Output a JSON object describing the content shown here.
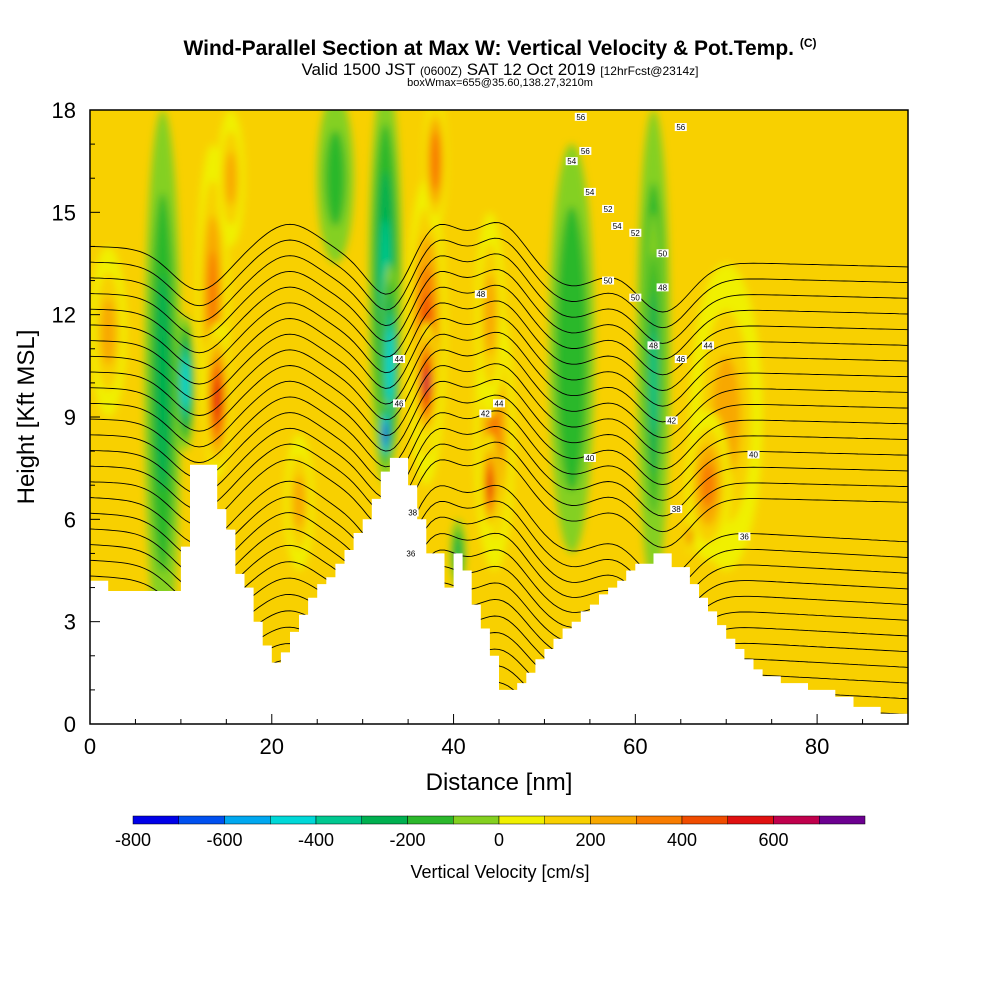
{
  "title": {
    "main": "Wind-Parallel Section at Max W: Vertical Velocity & Pot.Temp.",
    "copyright": "(C)",
    "valid_prefix": "Valid 1500 JST",
    "utc": "(0600Z)",
    "valid_date": "SAT 12 Oct 2019",
    "forecast": "[12hrFcst@2314z]",
    "box_info": "boxWmax=655@35.60,138.27,3210m"
  },
  "chart_data": {
    "type": "heatmap",
    "xlabel": "Distance [nm]",
    "ylabel": "Height [Kft MSL]",
    "xlim": [
      0,
      90
    ],
    "ylim": [
      0,
      18
    ],
    "x_ticks": [
      "0",
      "20",
      "40",
      "60",
      "80"
    ],
    "y_ticks": [
      "0",
      "3",
      "6",
      "9",
      "12",
      "15",
      "18"
    ],
    "colorbar": {
      "label": "Vertical Velocity [cm/s]",
      "tick_labels": [
        "-800",
        "-600",
        "-400",
        "-200",
        "0",
        "200",
        "400",
        "600"
      ],
      "levels": [
        -800,
        -700,
        -600,
        -500,
        -400,
        -300,
        -200,
        -100,
        0,
        100,
        200,
        300,
        400,
        500,
        600,
        700
      ],
      "colors": [
        "#0000e8",
        "#0050f0",
        "#00a8f0",
        "#00d8d8",
        "#00c890",
        "#00b050",
        "#2cb82c",
        "#84d020",
        "#f0f000",
        "#f8d000",
        "#f8a800",
        "#f87c00",
        "#f04c00",
        "#e01010",
        "#c0004c",
        "#6c0090"
      ]
    },
    "terrain": [
      [
        0,
        4.2
      ],
      [
        2,
        4.2
      ],
      [
        2,
        3.9
      ],
      [
        10,
        3.9
      ],
      [
        10,
        5.2
      ],
      [
        11,
        5.2
      ],
      [
        11,
        7.6
      ],
      [
        14,
        7.6
      ],
      [
        14,
        6.3
      ],
      [
        15,
        6.3
      ],
      [
        15,
        5.7
      ],
      [
        16,
        5.7
      ],
      [
        16,
        4.4
      ],
      [
        17,
        4.4
      ],
      [
        17,
        4.0
      ],
      [
        18,
        4.0
      ],
      [
        18,
        3.0
      ],
      [
        19,
        3.0
      ],
      [
        19,
        2.3
      ],
      [
        20,
        2.3
      ],
      [
        20,
        1.8
      ],
      [
        21,
        1.8
      ],
      [
        21,
        2.1
      ],
      [
        22,
        2.1
      ],
      [
        22,
        2.7
      ],
      [
        23,
        2.7
      ],
      [
        23,
        3.2
      ],
      [
        24,
        3.2
      ],
      [
        24,
        3.7
      ],
      [
        25,
        3.7
      ],
      [
        25,
        4.1
      ],
      [
        26,
        4.1
      ],
      [
        26,
        4.3
      ],
      [
        27,
        4.3
      ],
      [
        27,
        4.7
      ],
      [
        28,
        4.7
      ],
      [
        28,
        5.1
      ],
      [
        29,
        5.1
      ],
      [
        29,
        5.6
      ],
      [
        30,
        5.6
      ],
      [
        30,
        6.0
      ],
      [
        31,
        6.0
      ],
      [
        31,
        6.6
      ],
      [
        32,
        6.6
      ],
      [
        32,
        7.4
      ],
      [
        33,
        7.4
      ],
      [
        33,
        7.8
      ],
      [
        35,
        7.8
      ],
      [
        35,
        7.0
      ],
      [
        36,
        7.0
      ],
      [
        36,
        6.0
      ],
      [
        37,
        6.0
      ],
      [
        37,
        5.0
      ],
      [
        39,
        5.0
      ],
      [
        39,
        4.0
      ],
      [
        40,
        4.0
      ],
      [
        40,
        5.0
      ],
      [
        41,
        5.0
      ],
      [
        41,
        4.5
      ],
      [
        42,
        4.5
      ],
      [
        42,
        3.5
      ],
      [
        43,
        3.5
      ],
      [
        43,
        2.8
      ],
      [
        44,
        2.8
      ],
      [
        44,
        2.0
      ],
      [
        45,
        2.0
      ],
      [
        45,
        1.0
      ],
      [
        47,
        1.0
      ],
      [
        47,
        1.2
      ],
      [
        48,
        1.2
      ],
      [
        48,
        1.5
      ],
      [
        49,
        1.5
      ],
      [
        49,
        1.9
      ],
      [
        50,
        1.9
      ],
      [
        50,
        2.2
      ],
      [
        51,
        2.2
      ],
      [
        51,
        2.5
      ],
      [
        52,
        2.5
      ],
      [
        52,
        2.8
      ],
      [
        53,
        2.8
      ],
      [
        53,
        3.0
      ],
      [
        54,
        3.0
      ],
      [
        54,
        3.3
      ],
      [
        55,
        3.3
      ],
      [
        55,
        3.5
      ],
      [
        56,
        3.5
      ],
      [
        56,
        3.8
      ],
      [
        57,
        3.8
      ],
      [
        57,
        4.0
      ],
      [
        58,
        4.0
      ],
      [
        58,
        4.2
      ],
      [
        59,
        4.2
      ],
      [
        59,
        4.5
      ],
      [
        60,
        4.5
      ],
      [
        60,
        4.7
      ],
      [
        62,
        4.7
      ],
      [
        62,
        5.0
      ],
      [
        64,
        5.0
      ],
      [
        64,
        4.6
      ],
      [
        66,
        4.6
      ],
      [
        66,
        4.1
      ],
      [
        67,
        4.1
      ],
      [
        67,
        3.7
      ],
      [
        68,
        3.7
      ],
      [
        68,
        3.3
      ],
      [
        69,
        3.3
      ],
      [
        69,
        2.9
      ],
      [
        70,
        2.9
      ],
      [
        70,
        2.5
      ],
      [
        71,
        2.5
      ],
      [
        71,
        2.2
      ],
      [
        72,
        2.2
      ],
      [
        72,
        1.9
      ],
      [
        73,
        1.9
      ],
      [
        73,
        1.6
      ],
      [
        74,
        1.6
      ],
      [
        74,
        1.4
      ],
      [
        76,
        1.4
      ],
      [
        76,
        1.2
      ],
      [
        79,
        1.2
      ],
      [
        79,
        1.0
      ],
      [
        82,
        1.0
      ],
      [
        82,
        0.8
      ],
      [
        84,
        0.8
      ],
      [
        84,
        0.5
      ],
      [
        87,
        0.5
      ],
      [
        87,
        0.3
      ],
      [
        90,
        0.3
      ]
    ],
    "vertical_velocity_cells": [
      {
        "x": 13.5,
        "y": 12.5,
        "rx": 1.8,
        "ry": 4.5,
        "w": 250
      },
      {
        "x": 14,
        "y": 9.5,
        "rx": 1.5,
        "ry": 2.3,
        "w": 450
      },
      {
        "x": 15.5,
        "y": 16,
        "rx": 1.5,
        "ry": 2.0,
        "w": 200
      },
      {
        "x": 23,
        "y": 6.5,
        "rx": 1.6,
        "ry": 2.0,
        "w": 200
      },
      {
        "x": 2,
        "y": 11.5,
        "rx": 2.0,
        "ry": 2.5,
        "w": 200
      },
      {
        "x": 37,
        "y": 11.5,
        "rx": 2.2,
        "ry": 4.5,
        "w": 380
      },
      {
        "x": 37,
        "y": 10,
        "rx": 1.2,
        "ry": 1.8,
        "w": 600
      },
      {
        "x": 38,
        "y": 16.5,
        "rx": 1.3,
        "ry": 2.0,
        "w": 320
      },
      {
        "x": 44.5,
        "y": 8.5,
        "rx": 2.2,
        "ry": 4.0,
        "w": 250
      },
      {
        "x": 44,
        "y": 7,
        "rx": 1.0,
        "ry": 1.5,
        "w": 450
      },
      {
        "x": 44,
        "y": 12,
        "rx": 1.6,
        "ry": 3.0,
        "w": 200
      },
      {
        "x": 70,
        "y": 9,
        "rx": 4.0,
        "ry": 4.5,
        "w": 180
      },
      {
        "x": 68,
        "y": 7,
        "rx": 2.5,
        "ry": 2.2,
        "w": 250
      },
      {
        "x": 66,
        "y": 5.5,
        "rx": 0.5,
        "ry": 0.5,
        "w": 400
      },
      {
        "x": 53,
        "y": 11,
        "rx": 2.5,
        "ry": 6.0,
        "w": -120
      },
      {
        "x": 62,
        "y": 11,
        "rx": 1.8,
        "ry": 7.0,
        "w": -200
      },
      {
        "x": 62,
        "y": 10,
        "rx": 1.0,
        "ry": 5.0,
        "w": -260
      },
      {
        "x": 8,
        "y": 10,
        "rx": 2.0,
        "ry": 8.0,
        "w": -200
      },
      {
        "x": 10.5,
        "y": 10,
        "rx": 1.0,
        "ry": 2.0,
        "w": -420
      },
      {
        "x": 32.5,
        "y": 13,
        "rx": 1.8,
        "ry": 6.0,
        "w": -280
      },
      {
        "x": 33,
        "y": 10.5,
        "rx": 1.0,
        "ry": 3.0,
        "w": -450
      },
      {
        "x": 32.5,
        "y": 8.5,
        "rx": 0.6,
        "ry": 1.0,
        "w": -800
      },
      {
        "x": 27,
        "y": 16,
        "rx": 2.0,
        "ry": 2.5,
        "w": -80
      },
      {
        "x": 40.5,
        "y": 5,
        "rx": 0.8,
        "ry": 1.0,
        "w": -200
      }
    ],
    "theta_levels": [
      16,
      17,
      18,
      19,
      20,
      21,
      22,
      23,
      24,
      25,
      26,
      27,
      28,
      29,
      30,
      31,
      32,
      33,
      34,
      35,
      36,
      37,
      38,
      39,
      40,
      41,
      42,
      43,
      44,
      45,
      46,
      47,
      48,
      49,
      50,
      51,
      52,
      53,
      54,
      55,
      56
    ],
    "contour_labels": [
      {
        "text": "56",
        "x": 54,
        "y": 17.8
      },
      {
        "text": "56",
        "x": 54.5,
        "y": 16.8
      },
      {
        "text": "54",
        "x": 53,
        "y": 16.5
      },
      {
        "text": "56",
        "x": 65,
        "y": 17.5
      },
      {
        "text": "54",
        "x": 55,
        "y": 15.6
      },
      {
        "text": "52",
        "x": 57,
        "y": 15.1
      },
      {
        "text": "54",
        "x": 58,
        "y": 14.6
      },
      {
        "text": "52",
        "x": 60,
        "y": 14.4
      },
      {
        "text": "50",
        "x": 57,
        "y": 13.0
      },
      {
        "text": "50",
        "x": 63,
        "y": 13.8
      },
      {
        "text": "50",
        "x": 60,
        "y": 12.5
      },
      {
        "text": "48",
        "x": 43,
        "y": 12.6
      },
      {
        "text": "48",
        "x": 63,
        "y": 12.8
      },
      {
        "text": "48",
        "x": 62,
        "y": 11.1
      },
      {
        "text": "46",
        "x": 65,
        "y": 10.7
      },
      {
        "text": "46",
        "x": 34,
        "y": 9.4
      },
      {
        "text": "44",
        "x": 45,
        "y": 9.4
      },
      {
        "text": "44",
        "x": 34,
        "y": 10.7
      },
      {
        "text": "44",
        "x": 68,
        "y": 11.1
      },
      {
        "text": "42",
        "x": 43.5,
        "y": 9.1
      },
      {
        "text": "42",
        "x": 64,
        "y": 8.9
      },
      {
        "text": "40",
        "x": 55,
        "y": 7.8
      },
      {
        "text": "40",
        "x": 73,
        "y": 7.9
      },
      {
        "text": "38",
        "x": 64.5,
        "y": 6.3
      },
      {
        "text": "36",
        "x": 72,
        "y": 5.5
      },
      {
        "text": "38",
        "x": 35.5,
        "y": 6.2
      },
      {
        "text": "36",
        "x": 35.3,
        "y": 5.0
      }
    ]
  }
}
